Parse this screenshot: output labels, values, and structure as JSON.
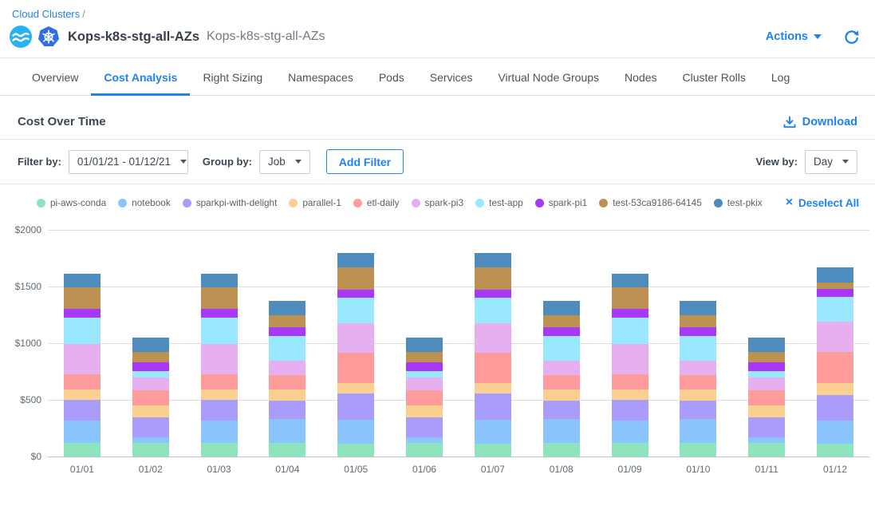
{
  "breadcrumb": {
    "link": "Cloud Clusters",
    "separator": "/"
  },
  "header": {
    "title": "Kops-k8s-stg-all-AZs",
    "subtitle": "Kops-k8s-stg-all-AZs",
    "actions_label": "Actions",
    "icons": [
      "ocean-logo-icon",
      "kubernetes-logo-icon",
      "chevron-down-icon",
      "refresh-icon"
    ]
  },
  "tabs": {
    "active": "Cost Analysis",
    "items": [
      "Overview",
      "Cost Analysis",
      "Right Sizing",
      "Namespaces",
      "Pods",
      "Services",
      "Virtual Node Groups",
      "Nodes",
      "Cluster Rolls",
      "Log"
    ]
  },
  "section": {
    "title": "Cost Over Time",
    "download_label": "Download"
  },
  "filter_bar": {
    "filter_by_label": "Filter by:",
    "date_range_value": "01/01/21 - 01/12/21",
    "group_by_label": "Group by:",
    "group_by_value": "Job",
    "add_filter_label": "Add Filter",
    "view_by_label": "View by:",
    "view_by_value": "Day"
  },
  "legend": {
    "deselect_label": "Deselect All",
    "deselect_icon": "close-icon"
  },
  "colors": {
    "accent_blue": "#1f82f2",
    "ocean_logo": "#29b2f2",
    "kubernetes_logo": "#326de6"
  },
  "chart_data": {
    "type": "bar",
    "stacked": true,
    "title": "Cost Over Time",
    "xlabel": "",
    "ylabel": "",
    "ylim": [
      0,
      2000
    ],
    "yticks": [
      0,
      500,
      1000,
      1500,
      2000
    ],
    "ytick_labels": [
      "$0",
      "$500",
      "$1000",
      "$1500",
      "$2000"
    ],
    "grid": true,
    "legend_position": "top",
    "categories": [
      "01/01",
      "01/02",
      "01/03",
      "01/04",
      "01/05",
      "01/06",
      "01/07",
      "01/08",
      "01/09",
      "01/10",
      "01/11",
      "01/12"
    ],
    "series": [
      {
        "name": "pi-aws-conda",
        "color": "#8de4bd",
        "values": [
          120,
          120,
          120,
          120,
          115,
          120,
          115,
          120,
          120,
          120,
          120,
          115
        ]
      },
      {
        "name": "notebook",
        "color": "#8cc4fe",
        "values": [
          200,
          50,
          200,
          210,
          210,
          50,
          210,
          210,
          200,
          210,
          50,
          205
        ]
      },
      {
        "name": "sparkpi-with-delight",
        "color": "#a99cfb",
        "values": [
          180,
          175,
          180,
          165,
          230,
          175,
          230,
          165,
          180,
          165,
          175,
          225
        ]
      },
      {
        "name": "parallel-1",
        "color": "#f9d08f",
        "values": [
          95,
          105,
          95,
          100,
          95,
          105,
          95,
          100,
          95,
          100,
          105,
          105
        ]
      },
      {
        "name": "etl-daily",
        "color": "#fe9c9c",
        "values": [
          130,
          135,
          130,
          125,
          265,
          135,
          265,
          125,
          130,
          125,
          135,
          275
        ]
      },
      {
        "name": "spark-pi3",
        "color": "#e6aff0",
        "values": [
          270,
          115,
          270,
          125,
          265,
          115,
          265,
          125,
          270,
          125,
          115,
          265
        ]
      },
      {
        "name": "test-app",
        "color": "#99e8fd",
        "values": [
          230,
          55,
          230,
          220,
          225,
          55,
          225,
          220,
          230,
          220,
          55,
          220
        ]
      },
      {
        "name": "spark-pi1",
        "color": "#a838f8",
        "values": [
          75,
          80,
          75,
          75,
          70,
          80,
          70,
          75,
          75,
          75,
          80,
          70
        ]
      },
      {
        "name": "test-53ca9186-64145",
        "color": "#bc9152",
        "values": [
          190,
          90,
          190,
          105,
          195,
          90,
          195,
          105,
          190,
          105,
          90,
          60
        ]
      },
      {
        "name": "test-pkix",
        "color": "#4e8cbd",
        "values": [
          125,
          125,
          125,
          130,
          130,
          125,
          130,
          130,
          125,
          130,
          125,
          130
        ]
      }
    ]
  }
}
